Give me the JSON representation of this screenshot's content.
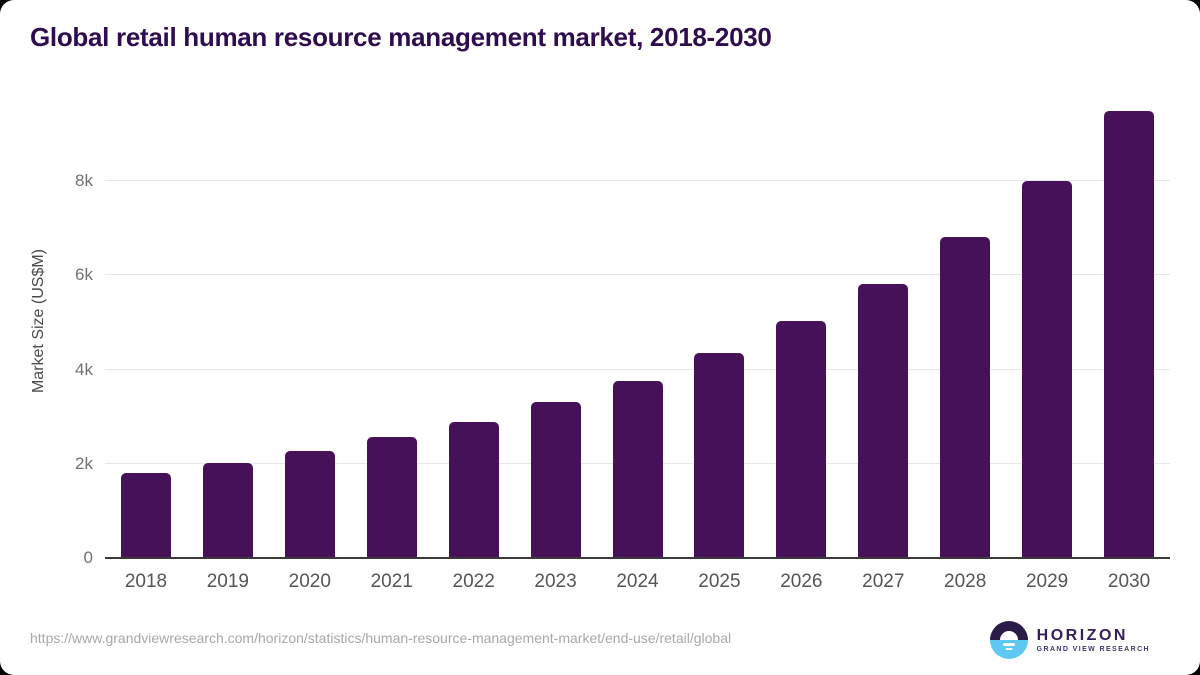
{
  "title": "Global retail human resource management market, 2018-2030",
  "chart_data": {
    "type": "bar",
    "title": "Global retail human resource management market, 2018-2030",
    "categories": [
      "2018",
      "2019",
      "2020",
      "2021",
      "2022",
      "2023",
      "2024",
      "2025",
      "2026",
      "2027",
      "2028",
      "2029",
      "2030"
    ],
    "values": [
      1800,
      2010,
      2280,
      2560,
      2890,
      3320,
      3760,
      4350,
      5030,
      5810,
      6820,
      8000,
      9490
    ],
    "xlabel": "",
    "ylabel": "Market Size (US$M)",
    "ylim": [
      0,
      9720
    ],
    "yticks": [
      0,
      2000,
      4000,
      6000,
      8000
    ],
    "ytick_labels": [
      "0",
      "2k",
      "4k",
      "6k",
      "8k"
    ],
    "grid": true,
    "legend_position": "none"
  },
  "footer": {
    "source_url": "https://www.grandviewresearch.com/horizon/statistics/human-resource-management-market/end-use/retail/global",
    "logo": {
      "name": "HORIZON",
      "subtitle": "GRAND VIEW RESEARCH"
    }
  },
  "colors": {
    "bar": "#47115A",
    "title_text": "#2F0C4E",
    "axis_line": "#3A3A3A",
    "gridline": "#E7E7E7",
    "tick_text": "#717171",
    "url_text": "#A8A8A8",
    "logo_purple": "#2B1B47",
    "logo_blue": "#5FC8F2"
  }
}
